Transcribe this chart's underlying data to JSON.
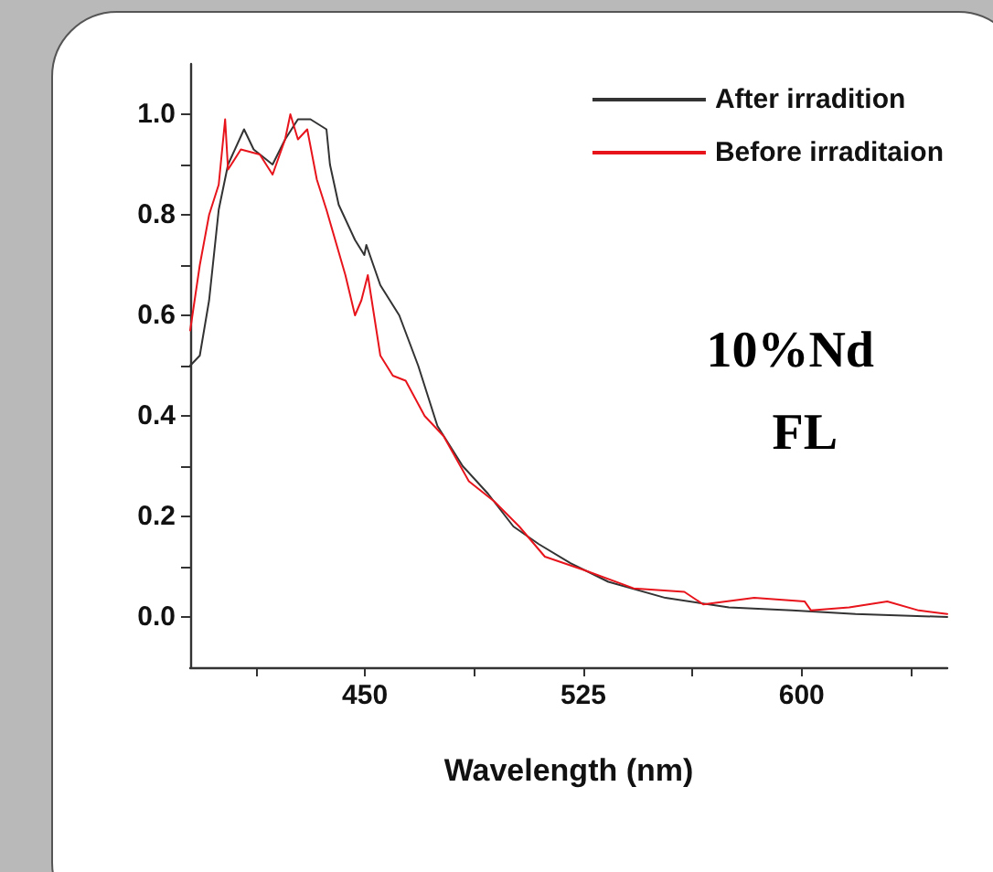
{
  "chart_data": {
    "type": "line",
    "xlabel": "Wavelength (nm)",
    "annotations": [
      "10%Nd",
      "FL"
    ],
    "xlim": [
      390,
      650
    ],
    "ylim": [
      -0.1,
      1.1
    ],
    "xticks": [
      {
        "value": 412.5,
        "label": null
      },
      450,
      {
        "value": 487.5,
        "label": null
      },
      525,
      {
        "value": 562.5,
        "label": null
      },
      600,
      {
        "value": 637.5,
        "label": null
      }
    ],
    "yticks": [
      {
        "value": 0,
        "label": "0.0"
      },
      {
        "value": 0.1,
        "label": null
      },
      {
        "value": 0.2,
        "label": "0.2"
      },
      {
        "value": 0.3,
        "label": null
      },
      {
        "value": 0.4,
        "label": "0.4"
      },
      {
        "value": 0.5,
        "label": null
      },
      {
        "value": 0.6,
        "label": "0.6"
      },
      {
        "value": 0.7,
        "label": null
      },
      {
        "value": 0.8,
        "label": "0.8"
      },
      {
        "value": 0.9,
        "label": null
      },
      {
        "value": 1.0,
        "label": "1.0"
      }
    ],
    "grid": false,
    "legend": "top right",
    "marker": "none",
    "line_style": "solid",
    "series": [
      {
        "name": "After irradition",
        "color": "#333333",
        "x": [
          390,
          393.3,
          396.5,
          399.8,
          403,
          408.5,
          411.8,
          418.3,
          422.6,
          427,
          431.3,
          436.8,
          438,
          441,
          446.6,
          449.8,
          450.5,
          455.3,
          461.8,
          468.3,
          474.9,
          483.6,
          492.3,
          501,
          509.7,
          520.6,
          533.6,
          553.2,
          575,
          596.7,
          618.5,
          650
        ],
        "values": [
          0.5,
          0.52,
          0.63,
          0.81,
          0.9,
          0.97,
          0.93,
          0.9,
          0.95,
          0.99,
          0.99,
          0.97,
          0.9,
          0.82,
          0.75,
          0.72,
          0.74,
          0.66,
          0.6,
          0.5,
          0.38,
          0.3,
          0.245,
          0.18,
          0.145,
          0.107,
          0.07,
          0.038,
          0.019,
          0.013,
          0.006,
          0.0
        ]
      },
      {
        "name": "Before irraditaion",
        "color": "#e8141c",
        "x": [
          390,
          393.3,
          396.5,
          399.8,
          402,
          403,
          407.4,
          413.9,
          418.3,
          422.6,
          424.4,
          427,
          430.2,
          433.5,
          436.8,
          443.3,
          446.6,
          448.8,
          451,
          455.3,
          459.6,
          464,
          470.5,
          477,
          485.7,
          494.4,
          503,
          511.8,
          524.9,
          542.3,
          559.7,
          566.2,
          583.7,
          601,
          603.2,
          616.3,
          629.4,
          640.2,
          650
        ],
        "values": [
          0.57,
          0.7,
          0.8,
          0.86,
          0.99,
          0.89,
          0.93,
          0.92,
          0.88,
          0.95,
          1.0,
          0.95,
          0.97,
          0.87,
          0.81,
          0.68,
          0.6,
          0.63,
          0.68,
          0.52,
          0.48,
          0.47,
          0.4,
          0.36,
          0.27,
          0.23,
          0.18,
          0.12,
          0.094,
          0.057,
          0.05,
          0.025,
          0.038,
          0.031,
          0.013,
          0.019,
          0.031,
          0.013,
          0.006
        ]
      }
    ]
  }
}
